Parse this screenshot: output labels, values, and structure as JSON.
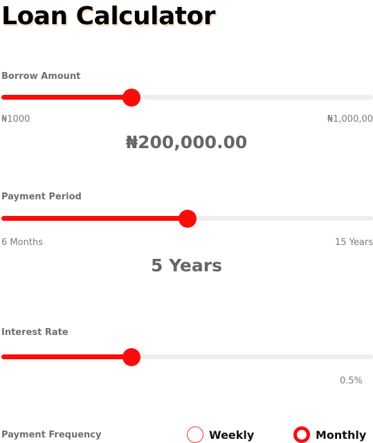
{
  "title": "Loan Calculator",
  "colors": {
    "accent": "#ff0a0a",
    "track": "#eeeeee"
  },
  "borrow": {
    "label": "Borrow Amount",
    "min_label": "₦1000",
    "max_label": "₦1,000,00",
    "value_label": "₦200,000.00",
    "level": 0.35
  },
  "period": {
    "label": "Payment Period",
    "min_label": "6 Months",
    "max_label": "15 Years",
    "value_label": "5 Years",
    "level": 0.5
  },
  "interest": {
    "label": "Interest Rate",
    "value_label": "0.5%",
    "level": 0.35
  },
  "frequency": {
    "label": "Payment Frequency",
    "options": [
      {
        "label": "Weekly",
        "selected": false
      },
      {
        "label": "Monthly",
        "selected": true
      }
    ]
  }
}
